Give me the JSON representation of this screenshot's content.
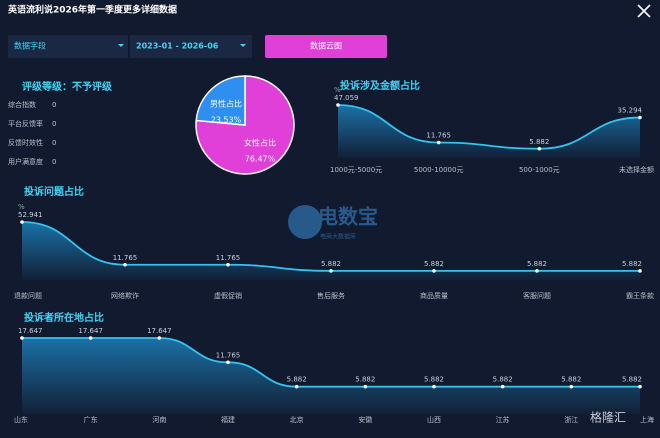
{
  "header": {
    "title": "英语流利说2026年第一季度更多详细数据"
  },
  "controls": {
    "dropdown": "数据字段",
    "date_range": "2023-01 - 2026-06",
    "button": "数据云图"
  },
  "rating": {
    "title": "评级等级：不予评级",
    "items": [
      {
        "label": "综合指数",
        "value": 0
      },
      {
        "label": "平台反馈率",
        "value": 0
      },
      {
        "label": "反馈时效性",
        "value": 0
      },
      {
        "label": "用户满意度",
        "value": 0
      }
    ]
  },
  "gender": {
    "type": "pie",
    "categories": [
      "男性占比",
      "女性占比"
    ],
    "values": [
      23.53,
      76.47
    ],
    "value_labels": [
      "23.53%",
      "76.47%"
    ],
    "colors": [
      "#2f8ff0",
      "#e03fd8"
    ]
  },
  "amount": {
    "type": "line",
    "title": "投诉涉及金额占比",
    "unit": "%",
    "categories": [
      "1000元-5000元",
      "5000-10000元",
      "500-1000元",
      "未选择金额"
    ],
    "values": [
      47.059,
      11.765,
      5.882,
      35.294
    ],
    "color": "#34c3f0"
  },
  "issues": {
    "type": "line",
    "title": "投诉问题占比",
    "unit": "%",
    "categories": [
      "退款问题",
      "网络欺诈",
      "虚假促销",
      "售后服务",
      "商品质量",
      "客服问题",
      "霸王条款"
    ],
    "values": [
      52.941,
      11.765,
      11.765,
      5.882,
      5.882,
      5.882,
      5.882
    ],
    "color": "#34c3f0"
  },
  "regions": {
    "type": "line",
    "title": "投诉者所在地占比",
    "categories": [
      "山东",
      "广东",
      "河南",
      "福建",
      "北京",
      "安徽",
      "山西",
      "江苏",
      "浙江",
      "上海"
    ],
    "values": [
      17.647,
      17.647,
      17.647,
      11.765,
      5.882,
      5.882,
      5.882,
      5.882,
      5.882,
      5.882
    ],
    "color": "#34c3f0"
  },
  "watermarks": {
    "logo": "电数宝",
    "logo_sub": "电商大数据库",
    "corner": "格隆汇"
  }
}
